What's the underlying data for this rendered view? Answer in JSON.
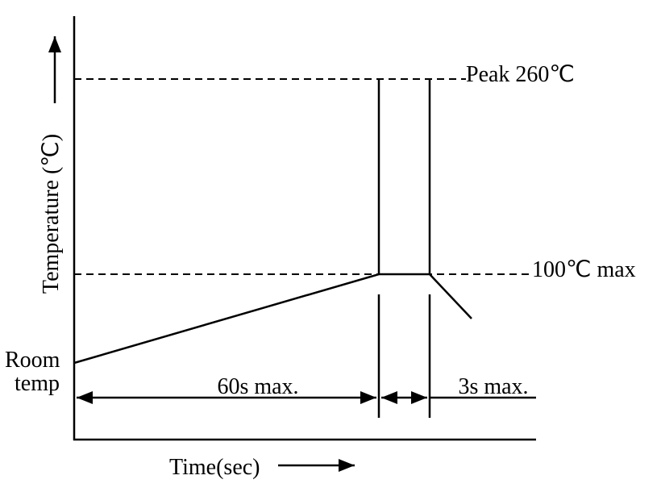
{
  "axes": {
    "y_label": "Temperature (℃)",
    "x_label": "Time(sec)"
  },
  "levels": {
    "peak": "Peak 260℃",
    "max": "100℃ max",
    "room_line1": "Room",
    "room_line2": "temp"
  },
  "durations": {
    "ramp": "60s max.",
    "hold": "3s max."
  }
}
